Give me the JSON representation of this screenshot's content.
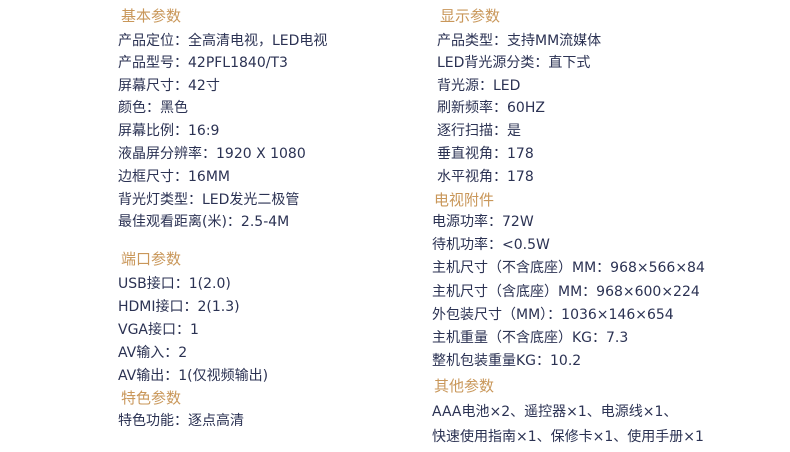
{
  "colors": {
    "heading": "#c9975a",
    "text": "#2b3253"
  },
  "left": [
    {
      "heading": "基本参数",
      "items": [
        "产品定位：全高清电视，LED电视",
        "产品型号：42PFL1840/T3",
        "屏幕尺寸：42寸",
        "颜色：黑色",
        "屏幕比例：16:9",
        "液晶屏分辨率：1920 X 1080",
        "边框尺寸：16MM",
        "背光灯类型：LED发光二极管",
        "最佳观看距离(米)：2.5-4M"
      ]
    },
    {
      "heading": "端口参数",
      "items": [
        "USB接口：1(2.0)",
        "HDMI接口：2(1.3)",
        "VGA接口：1",
        "AV输入：2",
        "AV输出：1(仅视频输出)"
      ]
    },
    {
      "heading": "特色参数",
      "items": [
        "特色功能：逐点高清"
      ]
    }
  ],
  "right": [
    {
      "heading": "显示参数",
      "items": [
        "产品类型：支持MM流媒体",
        "LED背光源分类：直下式",
        "背光源：LED",
        "刷新频率：60HZ",
        "逐行扫描：是",
        "垂直视角：178",
        "水平视角：178"
      ]
    },
    {
      "heading": "电视附件",
      "items": [
        "电源功率：72W",
        "待机功率：<0.5W",
        "主机尺寸（不含底座）MM：968×566×84",
        "主机尺寸（含底座）MM：968×600×224",
        "外包装尺寸（MM）：1036×146×654",
        "主机重量（不含底座）KG：7.3",
        "整机包装重量KG：10.2"
      ]
    },
    {
      "heading": "其他参数",
      "items": [
        "AAA电池×2、遥控器×1、电源线×1、",
        "快速使用指南×1、保修卡×1、使用手册×1"
      ]
    }
  ]
}
